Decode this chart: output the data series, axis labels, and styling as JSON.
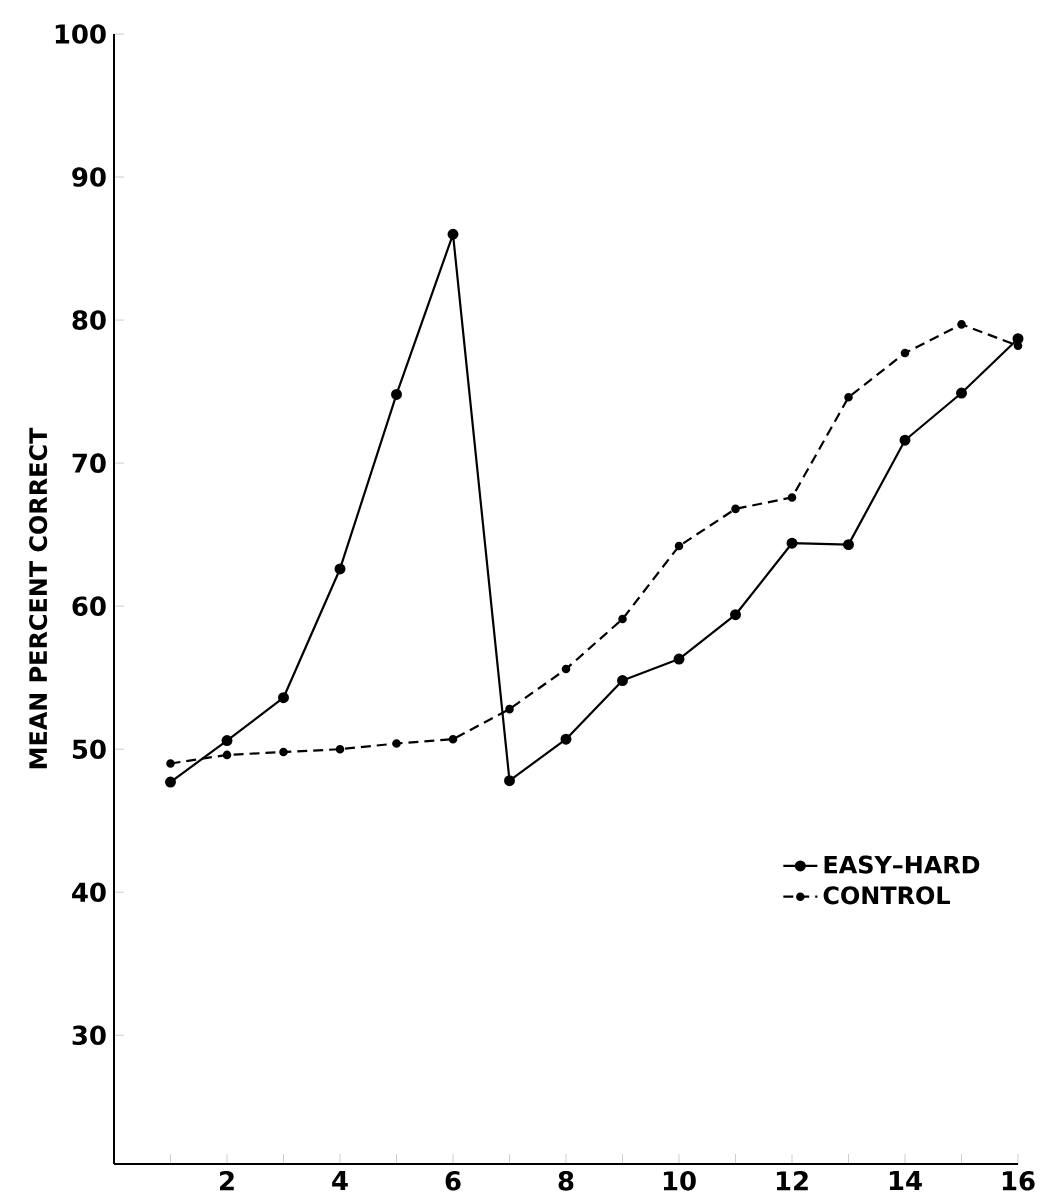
{
  "chart_data": {
    "type": "line",
    "ylabel": "MEAN PERCENT CORRECT",
    "x": [
      1,
      2,
      3,
      4,
      5,
      6,
      7,
      8,
      9,
      10,
      11,
      12,
      13,
      14,
      15,
      16
    ],
    "series": [
      {
        "name": "EASY–HARD",
        "color": "#000000",
        "line_style": "solid",
        "values": [
          47.7,
          50.6,
          53.6,
          62.6,
          74.8,
          86.0,
          47.8,
          50.7,
          54.8,
          56.3,
          59.4,
          64.4,
          64.3,
          71.6,
          74.9,
          78.7
        ]
      },
      {
        "name": "CONTROL",
        "color": "#000000",
        "line_style": "dashed",
        "values": [
          49.0,
          49.6,
          49.8,
          50.0,
          50.4,
          50.7,
          52.8,
          55.6,
          59.1,
          64.2,
          66.8,
          67.6,
          74.6,
          77.7,
          79.7,
          78.2
        ]
      }
    ],
    "xlim": [
      0,
      16
    ],
    "ylim": [
      21,
      100
    ],
    "xticks": [
      {
        "value": 1,
        "label": null
      },
      2,
      {
        "value": 3,
        "label": null
      },
      4,
      {
        "value": 5,
        "label": null
      },
      6,
      {
        "value": 7,
        "label": null
      },
      8,
      {
        "value": 9,
        "label": null
      },
      10,
      {
        "value": 11,
        "label": null
      },
      12,
      {
        "value": 13,
        "label": null
      },
      14,
      {
        "value": 15,
        "label": null
      },
      16
    ],
    "yticks": [
      30,
      40,
      50,
      60,
      70,
      80,
      90,
      100
    ],
    "marker": "circle",
    "legend": "bottom right",
    "grid": false
  }
}
